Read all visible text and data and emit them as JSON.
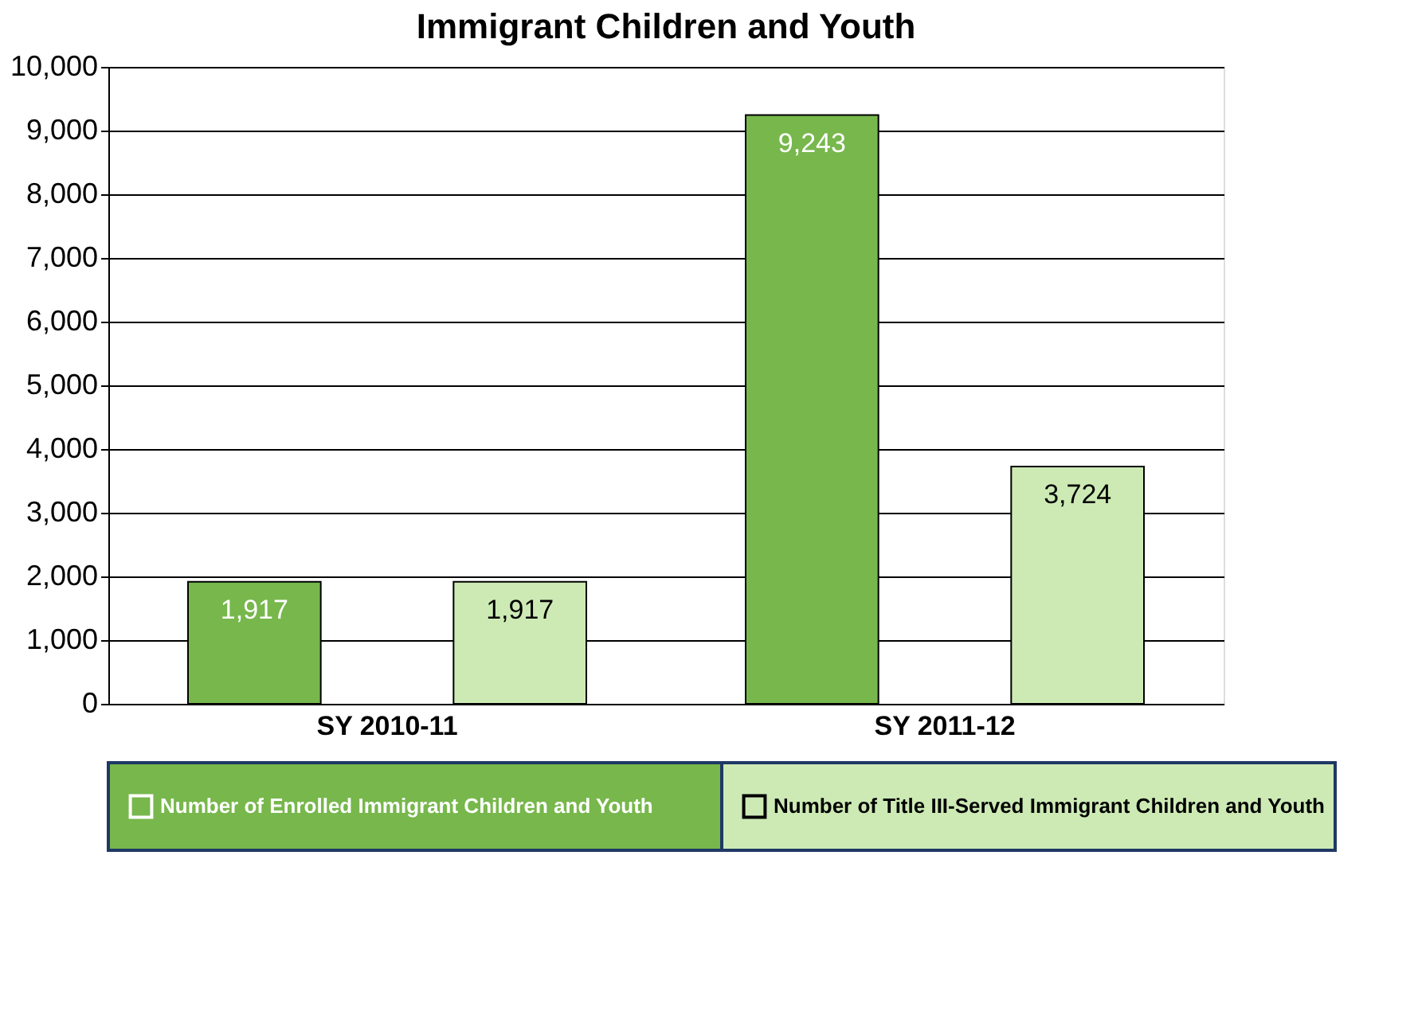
{
  "chart_data": {
    "type": "bar",
    "title": "Immigrant Children and Youth",
    "categories": [
      "SY 2010-11",
      "SY 2011-12"
    ],
    "series": [
      {
        "name": "Number of Enrolled Immigrant Children and Youth",
        "color": "#77b74c",
        "values": [
          1917,
          9243
        ],
        "value_labels": [
          "1,917",
          "9,243"
        ]
      },
      {
        "name": "Number of Title III-Served Immigrant Children and Youth",
        "color": "#cdeab5",
        "values": [
          1917,
          3724
        ],
        "value_labels": [
          "1,917",
          "3,724"
        ]
      }
    ],
    "ylim": [
      0,
      10000
    ],
    "yticks": [
      0,
      {
        "value": 1000,
        "label": "1,000"
      },
      {
        "value": 2000,
        "label": "2,000"
      },
      {
        "value": 3000,
        "label": "3,000"
      },
      {
        "value": 4000,
        "label": "4,000"
      },
      {
        "value": 5000,
        "label": "5,000"
      },
      {
        "value": 6000,
        "label": "6,000"
      },
      {
        "value": 7000,
        "label": "7,000"
      },
      {
        "value": 8000,
        "label": "8,000"
      },
      {
        "value": 9000,
        "label": "9,000"
      },
      {
        "value": 10000,
        "label": "10,000"
      }
    ],
    "grid": "y",
    "legend": "bottom"
  }
}
